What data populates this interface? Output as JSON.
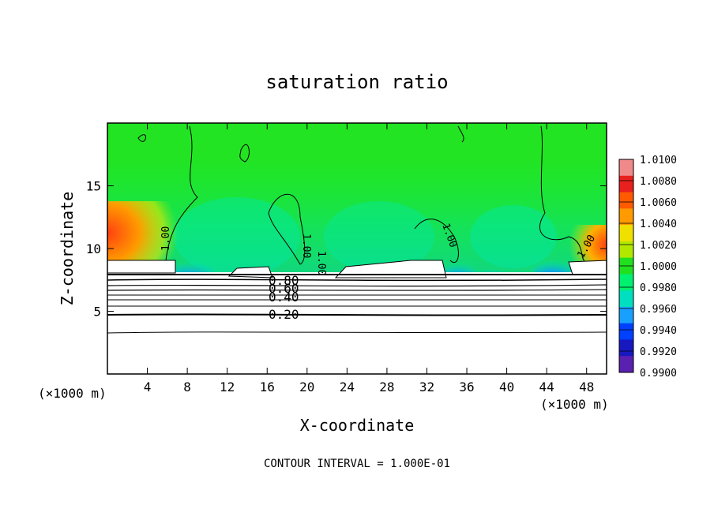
{
  "chart_data": {
    "type": "heatmap",
    "title": "saturation ratio",
    "xlabel": "X-coordinate",
    "ylabel": "Z-coordinate",
    "x_unit": "(×1000 m)",
    "y_unit": "(×1000 m)",
    "xlim": [
      0,
      50
    ],
    "ylim": [
      0,
      20
    ],
    "x_ticks": [
      4,
      8,
      12,
      16,
      20,
      24,
      28,
      32,
      36,
      40,
      44,
      48
    ],
    "y_ticks": [
      5,
      10,
      15
    ],
    "colorbar": {
      "min": 0.99,
      "max": 1.01,
      "ticks": [
        "1.0100",
        "1.0080",
        "1.0060",
        "1.0040",
        "1.0020",
        "1.0000",
        "0.9980",
        "0.9960",
        "0.9940",
        "0.9920",
        "0.9900"
      ],
      "colors": [
        "#f08a8a",
        "#e8201e",
        "#ff5a00",
        "#ff9a00",
        "#f0e000",
        "#b0e800",
        "#20e020",
        "#00f070",
        "#00e0c0",
        "#18a0ff",
        "#0040ff",
        "#1818c0",
        "#5a20b0"
      ]
    },
    "contour_labels": [
      "1.00",
      "1.00",
      "1.00",
      "1.00",
      "1.00",
      "0.80",
      "0.60",
      "0.40",
      "0.20"
    ],
    "contour_interval_note": "CONTOUR INTERVAL = 1.000E-01"
  }
}
